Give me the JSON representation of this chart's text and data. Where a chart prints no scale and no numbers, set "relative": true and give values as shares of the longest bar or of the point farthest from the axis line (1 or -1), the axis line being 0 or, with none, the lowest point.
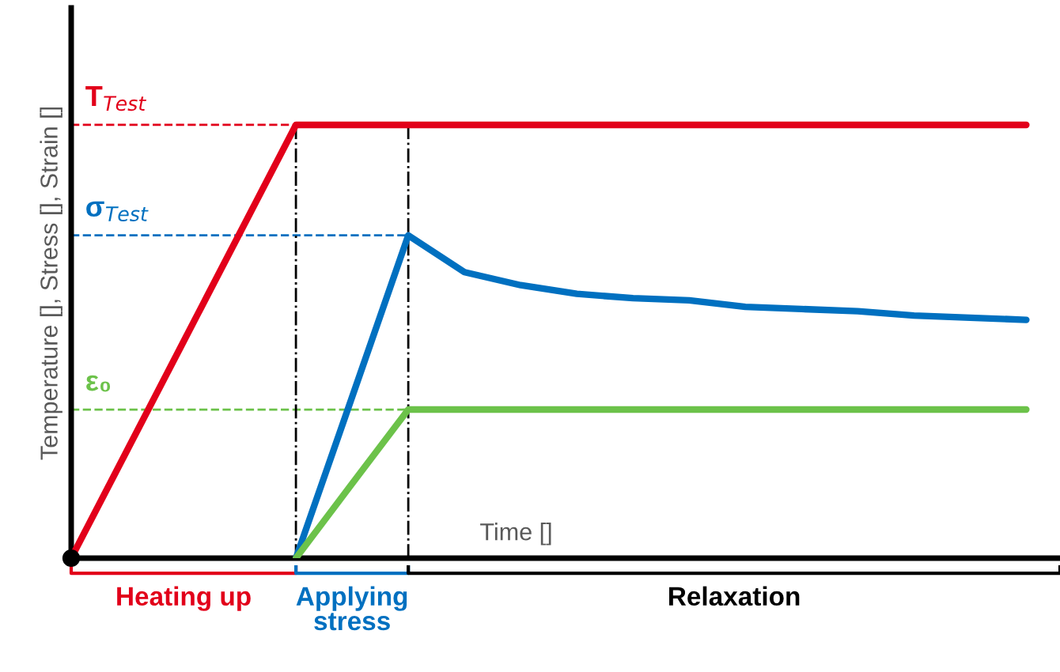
{
  "chart_data": {
    "type": "line",
    "relative": true,
    "xlabel": "Time []",
    "ylabel": "Temperature [], Stress [], Strain []",
    "categories": [
      null,
      null,
      null,
      null,
      null,
      null,
      null,
      null,
      null,
      null,
      null,
      null,
      null,
      null,
      null,
      null,
      null,
      null
    ],
    "series": [
      {
        "color": "#e2001a",
        "values": [
          0,
          0.25,
          0.5,
          0.75,
          1,
          1,
          1,
          1,
          1,
          1,
          1,
          1,
          1,
          1,
          1,
          1,
          1,
          1
        ]
      },
      {
        "color": "#0070c0",
        "values": [
          null,
          null,
          null,
          null,
          0,
          0.372,
          0.745,
          0.66,
          0.63,
          0.61,
          0.6,
          0.595,
          0.58,
          0.575,
          0.57,
          0.56,
          0.555,
          0.55
        ]
      },
      {
        "color": "#6cc24a",
        "values": [
          null,
          null,
          null,
          null,
          0,
          0.172,
          0.343,
          0.343,
          0.343,
          0.343,
          0.343,
          0.343,
          0.343,
          0.343,
          0.343,
          0.343,
          0.343,
          0.343
        ]
      }
    ],
    "ref_lines": [
      {
        "axis": "y",
        "value": 1,
        "label": "T$_{Test}$",
        "color": "#e2001a",
        "line_style": "dashed"
      },
      {
        "axis": "y",
        "value": 0.745,
        "label": "σ$_{Test}$",
        "color": "#0070c0",
        "line_style": "dashed"
      },
      {
        "axis": "y",
        "value": 0.343,
        "label": "ε₀",
        "color": "#6cc24a",
        "line_style": "dashed"
      }
    ],
    "annotations": [
      "Heating up",
      "Applying stress",
      "Relaxation"
    ],
    "legend": false,
    "grid": false,
    "marker": "none",
    "line_style": "solid"
  }
}
